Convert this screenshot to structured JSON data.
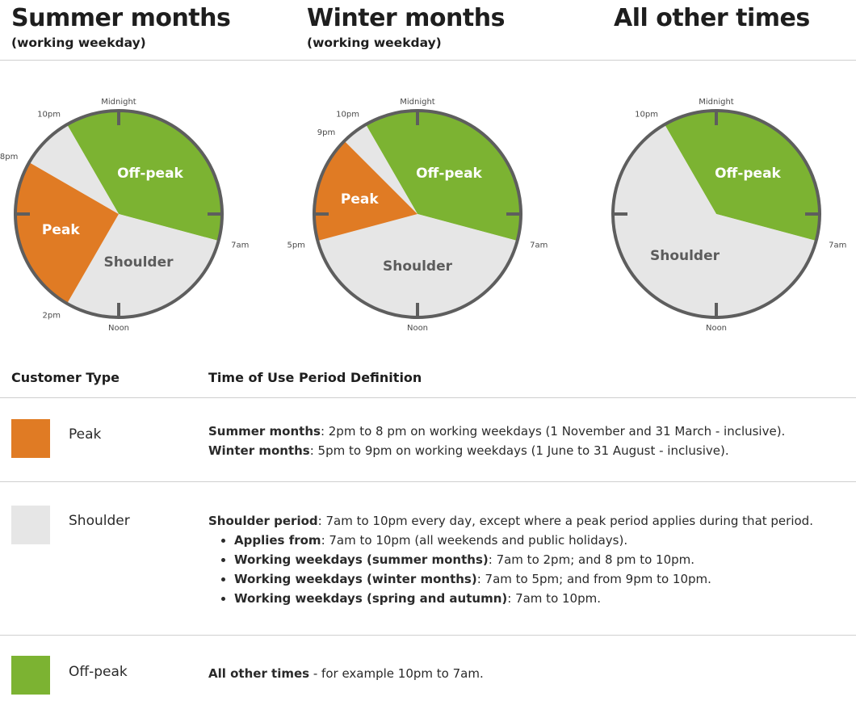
{
  "columns": [
    {
      "title": "Summer months",
      "subtitle": "(working weekday)"
    },
    {
      "title": "Winter months",
      "subtitle": "(working weekday)"
    },
    {
      "title": "All other times",
      "subtitle": ""
    }
  ],
  "clocks": [
    {
      "ticks": {
        "top": "Midnight",
        "bottom": "Noon"
      },
      "time_labels": [
        "10pm",
        "8pm",
        "7am",
        "2pm"
      ],
      "segments": [
        {
          "label": "Off-peak",
          "type": "offpeak",
          "start_hour": 22,
          "end_hour": 7
        },
        {
          "label": "Shoulder",
          "type": "shoulder",
          "start_hour": 7,
          "end_hour": 14
        },
        {
          "label": "Peak",
          "type": "peak",
          "start_hour": 14,
          "end_hour": 20
        },
        {
          "label": "",
          "type": "shoulder",
          "start_hour": 20,
          "end_hour": 22
        }
      ]
    },
    {
      "ticks": {
        "top": "Midnight",
        "bottom": "Noon"
      },
      "time_labels": [
        "10pm",
        "9pm",
        "7am",
        "5pm"
      ],
      "segments": [
        {
          "label": "Off-peak",
          "type": "offpeak",
          "start_hour": 22,
          "end_hour": 7
        },
        {
          "label": "Shoulder",
          "type": "shoulder",
          "start_hour": 7,
          "end_hour": 17
        },
        {
          "label": "Peak",
          "type": "peak",
          "start_hour": 17,
          "end_hour": 21
        },
        {
          "label": "",
          "type": "shoulder",
          "start_hour": 21,
          "end_hour": 22
        }
      ]
    },
    {
      "ticks": {
        "top": "Midnight",
        "bottom": "Noon"
      },
      "time_labels": [
        "10pm",
        "7am"
      ],
      "segments": [
        {
          "label": "Off-peak",
          "type": "offpeak",
          "start_hour": 22,
          "end_hour": 7
        },
        {
          "label": "Shoulder",
          "type": "shoulder",
          "start_hour": 7,
          "end_hour": 22
        }
      ]
    }
  ],
  "colors": {
    "peak": "#e07b24",
    "shoulder": "#e6e6e6",
    "offpeak": "#7cb332",
    "rim": "#5e5e5e"
  },
  "table": {
    "header_type": "Customer Type",
    "header_definition": "Time of Use Period Definition",
    "rows": {
      "peak": {
        "name": "Peak",
        "lines": [
          {
            "label": "Summer months",
            "text": ": 2pm to 8 pm on working weekdays (1 November and 31 March - inclusive)."
          },
          {
            "label": "Winter months",
            "text": ": 5pm to 9pm on working weekdays (1 June to 31 August - inclusive)."
          }
        ]
      },
      "shoulder": {
        "name": "Shoulder",
        "intro_label": "Shoulder period",
        "intro_text": ": 7am to 10pm every day, except where a peak period applies during that period.",
        "bullets": [
          {
            "label": "Applies from",
            "text": ": 7am to 10pm (all weekends and public holidays)."
          },
          {
            "label": "Working weekdays (summer months)",
            "text": ": 7am to 2pm; and 8 pm to 10pm."
          },
          {
            "label": "Working weekdays (winter months)",
            "text": ": 7am to 5pm; and from 9pm to 10pm."
          },
          {
            "label": "Working weekdays (spring and autumn)",
            "text": ":  7am to 10pm."
          }
        ]
      },
      "offpeak": {
        "name": "Off-peak",
        "label": "All other times",
        "text": " - for example 10pm to 7am."
      }
    }
  }
}
